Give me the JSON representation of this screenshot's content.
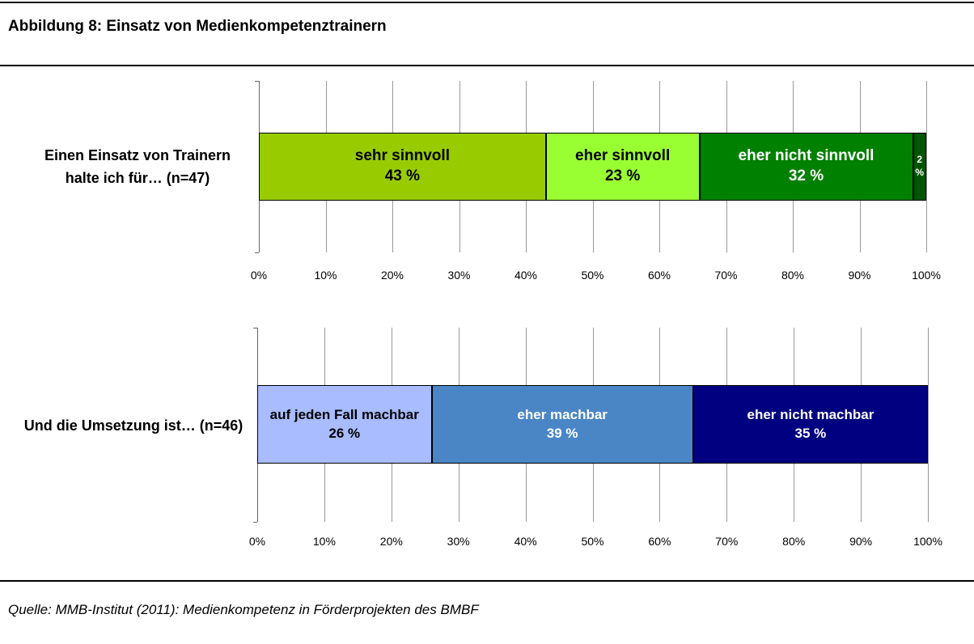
{
  "title": "Abbildung 8: Einsatz von Medienkompetenztrainern",
  "source": "Quelle: MMB-Institut (2011): Medienkompetenz in Förderprojekten des BMBF",
  "chart_data": [
    {
      "type": "bar",
      "orientation": "horizontal",
      "stacked": true,
      "categories": [
        "Einen Einsatz von Trainern halte ich für… (n=47)"
      ],
      "series": [
        {
          "name": "sehr sinnvoll",
          "color": "#99cc00",
          "label_color": "#000000",
          "values": [
            43
          ],
          "value_labels": [
            "43 %"
          ]
        },
        {
          "name": "eher sinnvoll",
          "color": "#99ff33",
          "label_color": "#000000",
          "values": [
            23
          ],
          "value_labels": [
            "23 %"
          ]
        },
        {
          "name": "eher nicht sinnvoll",
          "color": "#008000",
          "label_color": "#ffffff",
          "values": [
            32
          ],
          "value_labels": [
            "32 %"
          ]
        },
        {
          "color": "#005500",
          "label_color": "#ffffff",
          "values": [
            2
          ],
          "value_labels": [
            "2 %"
          ]
        }
      ],
      "xlim": [
        0,
        100
      ],
      "xticks": [
        {
          "value": 0,
          "label": "0%"
        },
        {
          "value": 10,
          "label": "10%"
        },
        {
          "value": 20,
          "label": "20%"
        },
        {
          "value": 30,
          "label": "30%"
        },
        {
          "value": 40,
          "label": "40%"
        },
        {
          "value": 50,
          "label": "50%"
        },
        {
          "value": 60,
          "label": "60%"
        },
        {
          "value": 70,
          "label": "70%"
        },
        {
          "value": 80,
          "label": "80%"
        },
        {
          "value": 90,
          "label": "90%"
        },
        {
          "value": 100,
          "label": "100%"
        }
      ],
      "grid": true
    },
    {
      "type": "bar",
      "orientation": "horizontal",
      "stacked": true,
      "categories": [
        "Und die Umsetzung ist… (n=46)"
      ],
      "series": [
        {
          "name": "auf jeden Fall machbar",
          "color": "#a8bcff",
          "label_color": "#000000",
          "values": [
            26
          ],
          "value_labels": [
            "26 %"
          ]
        },
        {
          "name": "eher machbar",
          "color": "#4a86c6",
          "label_color": "#ffffff",
          "values": [
            39
          ],
          "value_labels": [
            "39 %"
          ]
        },
        {
          "name": "eher nicht machbar",
          "color": "#000080",
          "label_color": "#ffffff",
          "values": [
            35
          ],
          "value_labels": [
            "35 %"
          ]
        }
      ],
      "xlim": [
        0,
        100
      ],
      "xticks": [
        {
          "value": 0,
          "label": "0%"
        },
        {
          "value": 10,
          "label": "10%"
        },
        {
          "value": 20,
          "label": "20%"
        },
        {
          "value": 30,
          "label": "30%"
        },
        {
          "value": 40,
          "label": "40%"
        },
        {
          "value": 50,
          "label": "50%"
        },
        {
          "value": 60,
          "label": "60%"
        },
        {
          "value": 70,
          "label": "70%"
        },
        {
          "value": 80,
          "label": "80%"
        },
        {
          "value": 90,
          "label": "90%"
        },
        {
          "value": 100,
          "label": "100%"
        }
      ],
      "grid": true
    }
  ]
}
